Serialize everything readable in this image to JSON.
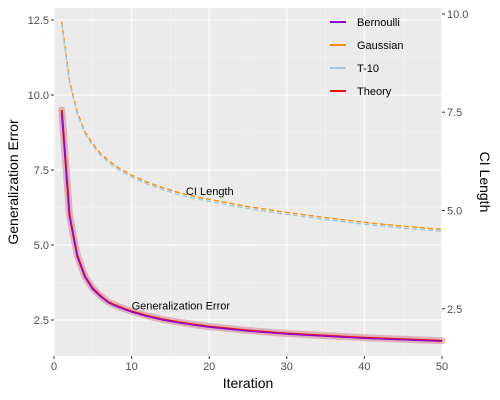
{
  "chart_data": {
    "type": "line",
    "xlabel": "Iteration",
    "ylabel": "Generalization Error",
    "ylabel_right": "CI Length",
    "xlim": [
      0,
      50
    ],
    "ylim": [
      1.3,
      12.9
    ],
    "ylim_right": [
      1.3,
      10.15
    ],
    "xticks": [
      0,
      10,
      20,
      30,
      40,
      50
    ],
    "yticks": [
      2.5,
      5.0,
      7.5,
      10.0,
      12.5
    ],
    "yticks_right": [
      2.5,
      5.0,
      7.5,
      10.0
    ],
    "xtick_labels": [
      "0",
      "10",
      "20",
      "30",
      "40",
      "50"
    ],
    "ytick_labels": [
      "2.5",
      "5.0",
      "7.5",
      "10.0",
      "12.5"
    ],
    "ytick_labels_right": [
      "2.5",
      "5.0",
      "7.5",
      "10.0"
    ],
    "grid": true,
    "legend_position": "top-right",
    "legend": [
      {
        "name": "Bernoulli",
        "color": "#9400D3"
      },
      {
        "name": "Gaussian",
        "color": "#FF8C00"
      },
      {
        "name": "T-10",
        "color": "#9ECAE1"
      },
      {
        "name": "Theory",
        "color": "#EE1111"
      }
    ],
    "annotations": [
      {
        "text": "CI Length",
        "x": 17,
        "y_right": 5.4
      },
      {
        "text": "Generalization Error",
        "x": 10,
        "y": 2.85
      }
    ],
    "series": [
      {
        "name": "Theory",
        "axis": "left",
        "style": "solid",
        "band": true,
        "x": [
          1,
          2,
          3,
          4,
          5,
          6,
          7,
          8,
          9,
          10,
          12,
          14,
          16,
          18,
          20,
          25,
          30,
          35,
          40,
          45,
          50
        ],
        "y": [
          9.5,
          6.0,
          4.65,
          3.95,
          3.55,
          3.3,
          3.1,
          2.98,
          2.88,
          2.79,
          2.64,
          2.52,
          2.43,
          2.35,
          2.28,
          2.15,
          2.05,
          1.98,
          1.91,
          1.86,
          1.81
        ]
      },
      {
        "name": "Bernoulli",
        "axis": "left",
        "style": "solid",
        "x": [
          1,
          2,
          3,
          4,
          5,
          6,
          7,
          8,
          9,
          10,
          12,
          14,
          16,
          18,
          20,
          25,
          30,
          35,
          40,
          45,
          50
        ],
        "y": [
          9.4,
          5.95,
          4.6,
          3.92,
          3.52,
          3.28,
          3.08,
          2.96,
          2.86,
          2.77,
          2.62,
          2.5,
          2.41,
          2.33,
          2.26,
          2.13,
          2.03,
          1.96,
          1.89,
          1.84,
          1.79
        ]
      },
      {
        "name": "Gaussian",
        "axis": "right",
        "style": "dashed",
        "x": [
          1,
          2,
          3,
          4,
          5,
          6,
          7,
          8,
          10,
          12,
          14,
          16,
          18,
          20,
          25,
          30,
          35,
          40,
          45,
          50
        ],
        "y": [
          9.8,
          8.3,
          7.5,
          7.0,
          6.7,
          6.45,
          6.28,
          6.12,
          5.9,
          5.72,
          5.58,
          5.46,
          5.36,
          5.28,
          5.1,
          4.95,
          4.82,
          4.7,
          4.6,
          4.52
        ]
      },
      {
        "name": "T-10",
        "axis": "right",
        "style": "dashed",
        "x": [
          1,
          2,
          3,
          4,
          5,
          6,
          7,
          8,
          10,
          12,
          14,
          16,
          18,
          20,
          25,
          30,
          35,
          40,
          45,
          50
        ],
        "y": [
          9.75,
          8.25,
          7.45,
          6.95,
          6.65,
          6.4,
          6.23,
          6.07,
          5.85,
          5.67,
          5.53,
          5.41,
          5.31,
          5.23,
          5.05,
          4.9,
          4.77,
          4.65,
          4.55,
          4.47
        ]
      }
    ]
  }
}
